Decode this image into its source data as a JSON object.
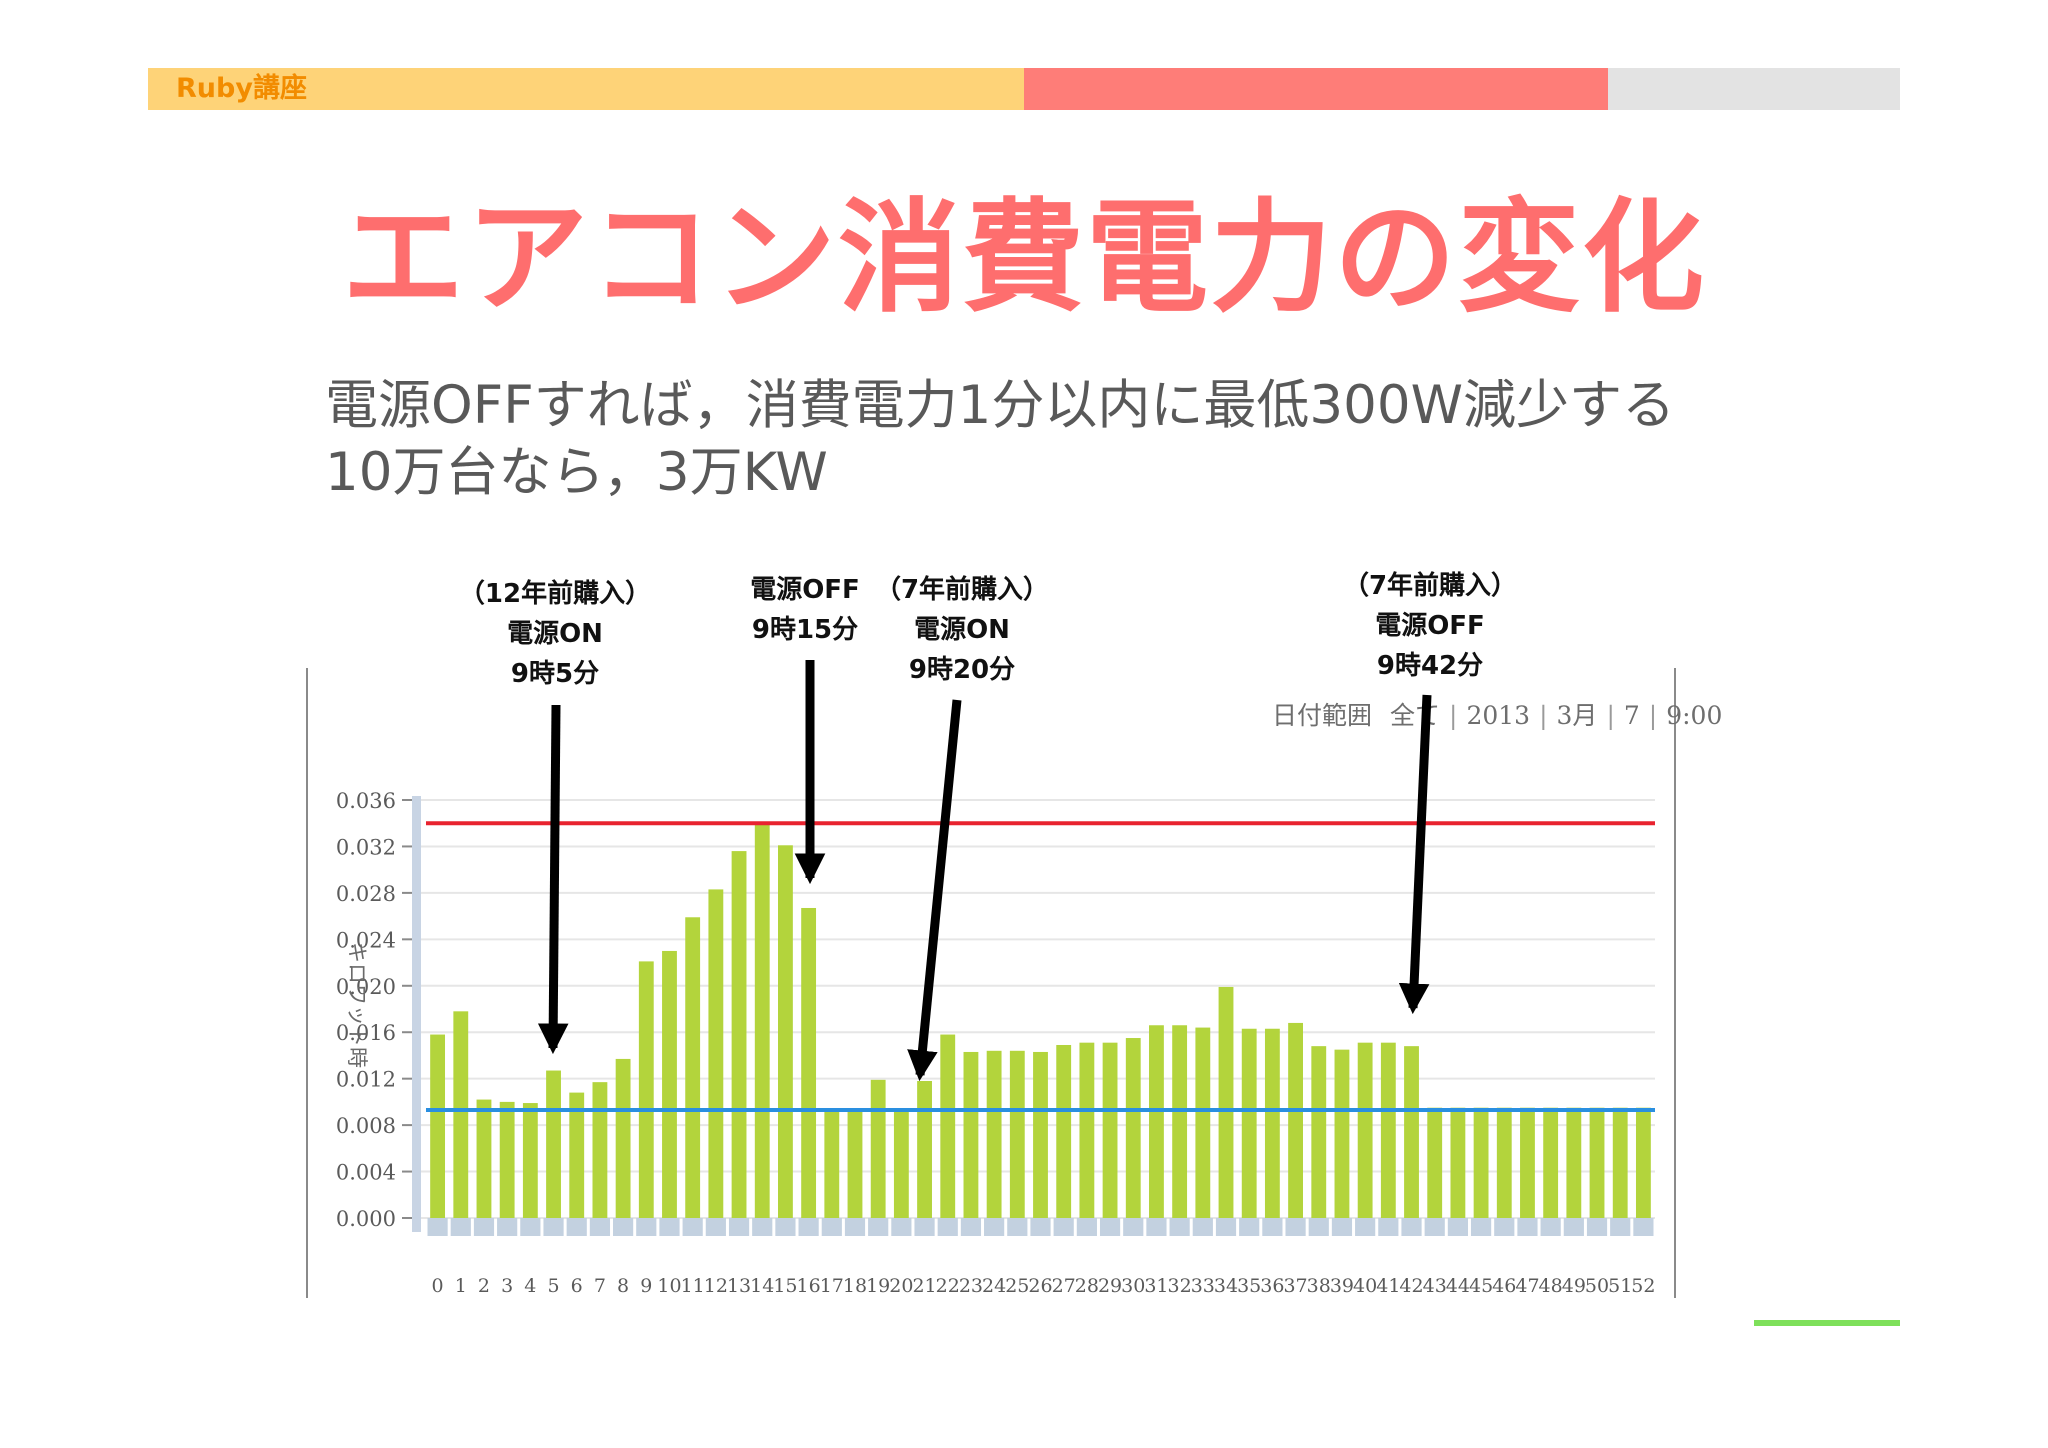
{
  "header": {
    "course_label": "Ruby講座",
    "colors": {
      "segment_1": "#fed378",
      "segment_2": "#fe7d78",
      "segment_3": "#e3e3e3",
      "label": "#f28c00"
    }
  },
  "slide": {
    "title": "エアコン消費電力の変化",
    "title_color": "#fe6e6e",
    "subtitle_lines": [
      "電源OFFすれば，消費電力1分以内に最低300W減少する",
      "10万台なら，3万KW"
    ]
  },
  "chart_filter": {
    "label": "日付範囲",
    "scope": "全て",
    "year": "2013",
    "month": "3月",
    "day": "7",
    "time": "9:00"
  },
  "annotations": [
    {
      "lines": [
        "（12年前購入）",
        "電源ON",
        "9時5分"
      ]
    },
    {
      "lines": [
        "電源OFF",
        "9時15分"
      ]
    },
    {
      "lines": [
        "（7年前購入）",
        "電源ON",
        "9時20分"
      ]
    },
    {
      "lines": [
        "（7年前購入）",
        "電源OFF",
        "9時42分"
      ]
    }
  ],
  "chart_data": {
    "type": "bar",
    "ylabel": "キロワット時",
    "ylim": [
      0,
      0.036
    ],
    "ytick_labels": [
      "0.000",
      "0.004",
      "0.008",
      "0.012",
      "0.016",
      "0.020",
      "0.024",
      "0.028",
      "0.032",
      "0.036"
    ],
    "categories": [
      "0",
      "1",
      "2",
      "3",
      "4",
      "5",
      "6",
      "7",
      "8",
      "9",
      "10",
      "11",
      "12",
      "13",
      "14",
      "15",
      "16",
      "17",
      "18",
      "19",
      "20",
      "21",
      "22",
      "23",
      "24",
      "25",
      "26",
      "27",
      "28",
      "29",
      "30",
      "31",
      "32",
      "33",
      "34",
      "35",
      "36",
      "37",
      "38",
      "39",
      "40",
      "41",
      "42",
      "43",
      "44",
      "45",
      "46",
      "47",
      "48",
      "49",
      "50",
      "51",
      "52"
    ],
    "values": [
      0.0158,
      0.0178,
      0.0102,
      0.01,
      0.0099,
      0.0127,
      0.0108,
      0.0117,
      0.0137,
      0.0221,
      0.023,
      0.0259,
      0.0283,
      0.0316,
      0.034,
      0.0321,
      0.0267,
      0.0092,
      0.0092,
      0.0119,
      0.0093,
      0.0118,
      0.0158,
      0.0143,
      0.0144,
      0.0144,
      0.0143,
      0.0149,
      0.0151,
      0.0151,
      0.0155,
      0.0166,
      0.0166,
      0.0164,
      0.0199,
      0.0163,
      0.0163,
      0.0168,
      0.0148,
      0.0145,
      0.0151,
      0.0151,
      0.0148,
      0.0095,
      0.0095,
      0.0095,
      0.0095,
      0.0095,
      0.0095,
      0.0095,
      0.0095,
      0.0095,
      0.0095
    ],
    "reference_lines": [
      {
        "value": 0.034,
        "color": "#e8232f"
      },
      {
        "value": 0.0093,
        "color": "#2a8fe0"
      }
    ],
    "grid": true,
    "colors": {
      "bar": "#b3d43c",
      "base": "#c3d1e0",
      "axis_strip": "#c8d4e4",
      "grid": "#e6e6e6"
    }
  }
}
